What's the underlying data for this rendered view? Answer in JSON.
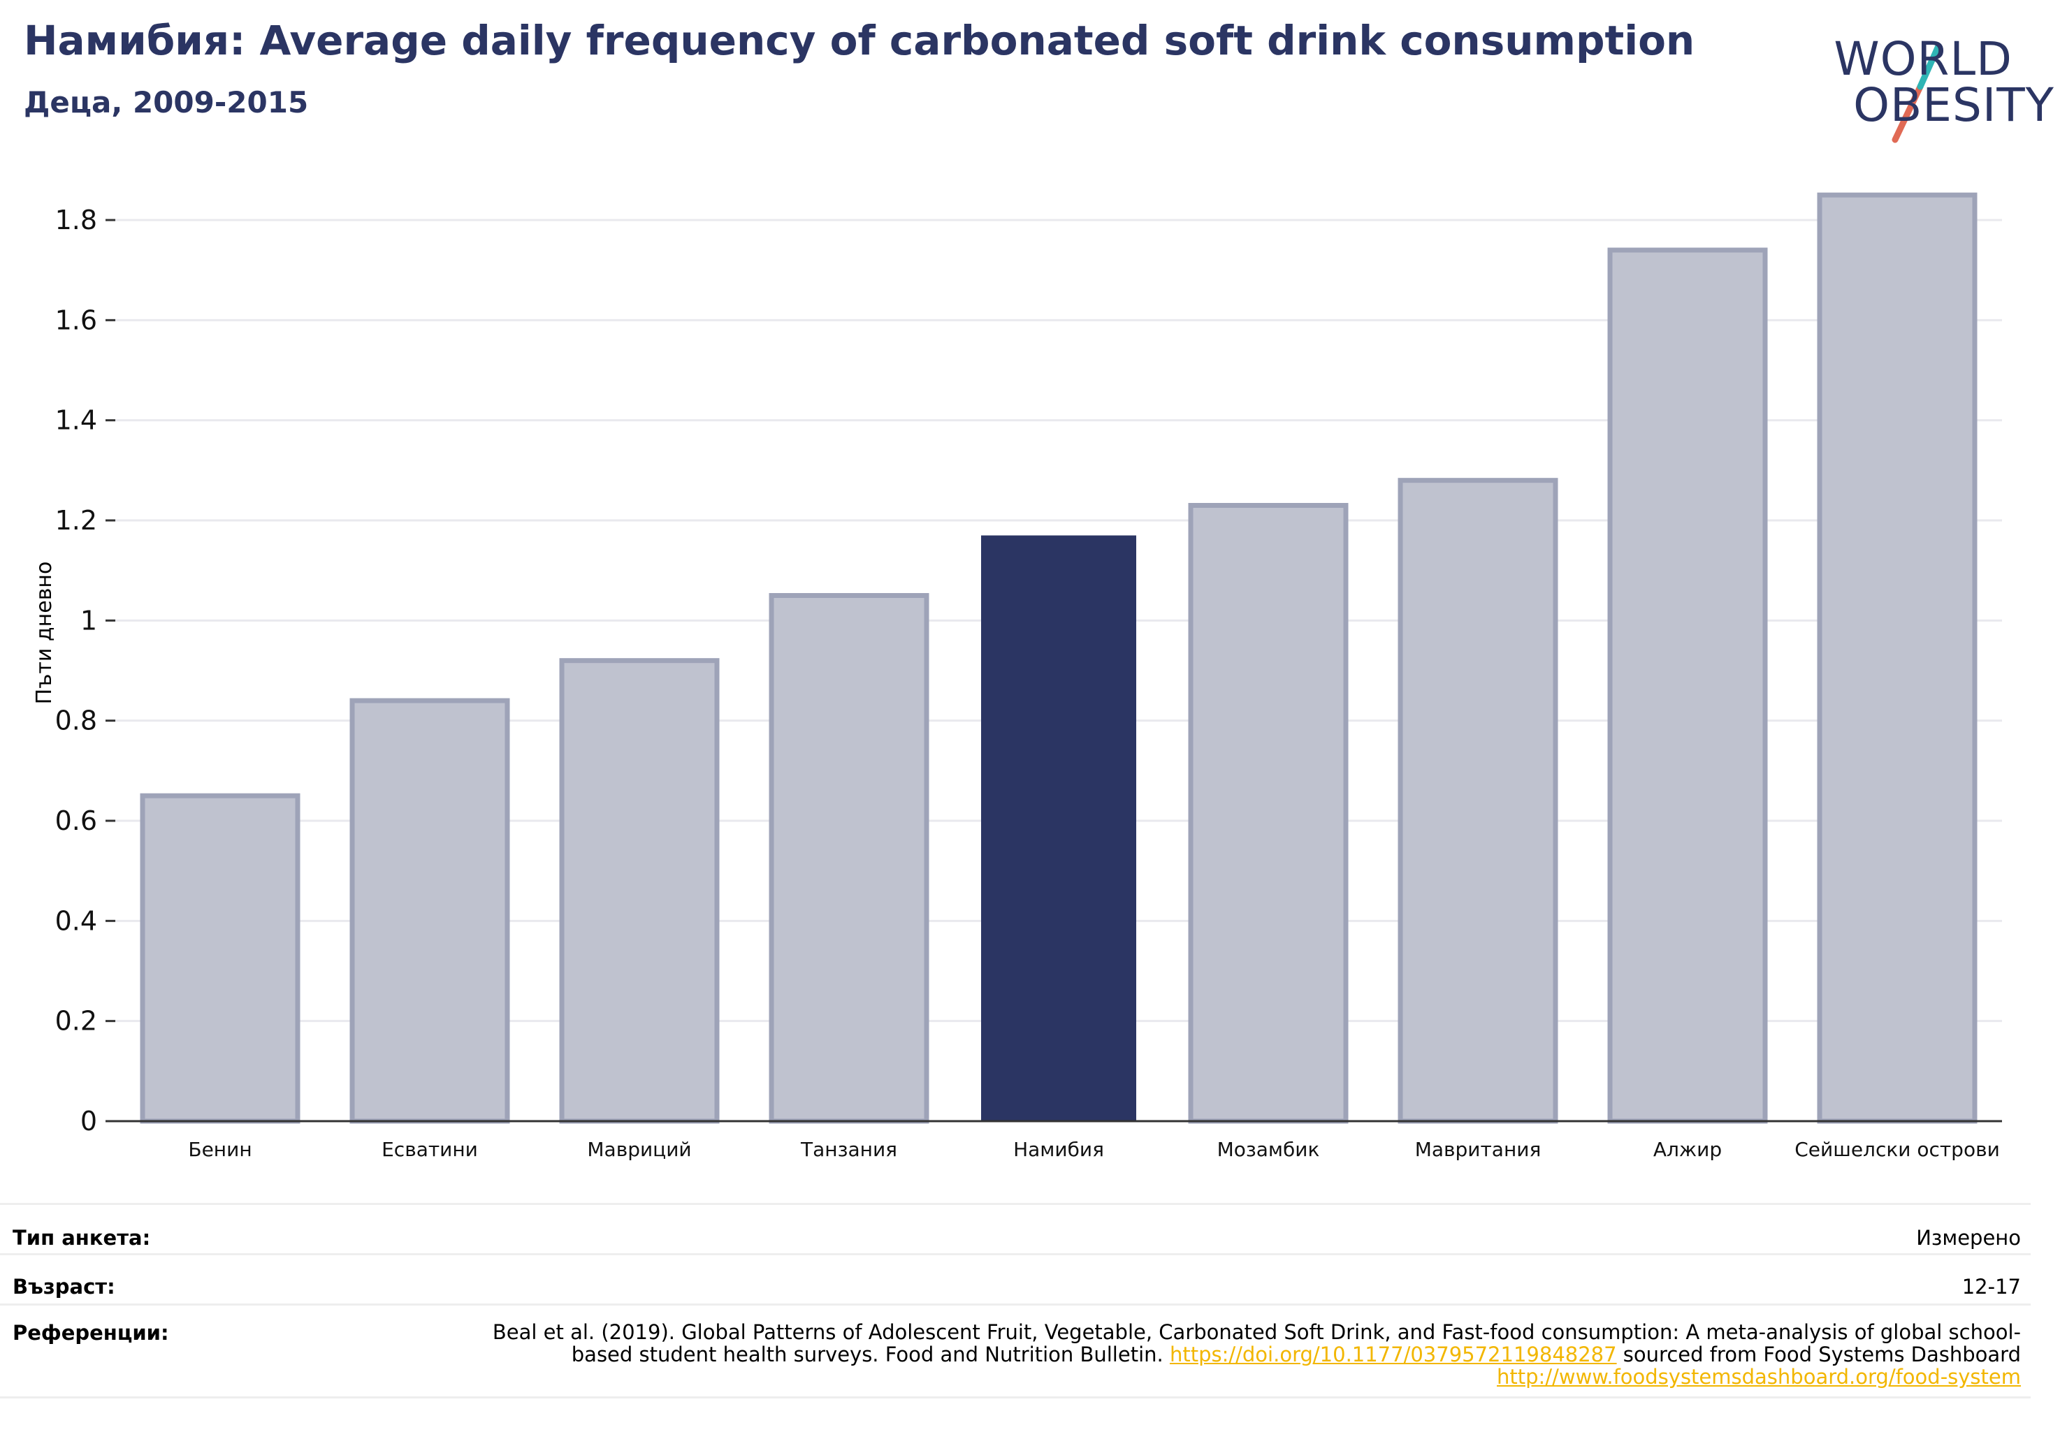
{
  "header": {
    "title": "Намибия: Average daily frequency of carbonated soft drink consumption",
    "subtitle": "Деца, 2009-2015"
  },
  "logo": {
    "line1": "WORLD",
    "line2": "OBESITY",
    "slash_colors": [
      "#2fb5b5",
      "#e06a55"
    ]
  },
  "colors": {
    "highlight_bar": "#2b3563",
    "other_bar": "#bfc2cf",
    "other_bar_border": "#9ea3b8",
    "title": "#2b3563",
    "link": "#f2b600"
  },
  "chart_data": {
    "type": "bar",
    "ylabel": "Пъти дневно",
    "ylim": [
      0,
      1.9
    ],
    "yticks": [
      0,
      0.2,
      0.4,
      0.6,
      0.8,
      1,
      1.2,
      1.4,
      1.6,
      1.8
    ],
    "ytick_labels": [
      "0",
      "0.2",
      "0.4",
      "0.6",
      "0.8",
      "1",
      "1.2",
      "1.4",
      "1.6",
      "1.8"
    ],
    "categories": [
      "Бенин",
      "Есватини",
      "Мавриций",
      "Танзания",
      "Намибия",
      "Мозамбик",
      "Мавритания",
      "Алжир",
      "Сейшелски острови"
    ],
    "values": [
      0.65,
      0.84,
      0.92,
      1.05,
      1.17,
      1.23,
      1.28,
      1.74,
      1.85
    ],
    "highlight": "Намибия",
    "grid": true
  },
  "meta": {
    "survey_label": "Тип анкета:",
    "survey_value": "Измерено",
    "age_label": "Възраст:",
    "age_value": "12-17",
    "ref_label": "Референции:",
    "ref_text_1": "Beal et al. (2019). Global Patterns of Adolescent Fruit, Vegetable, Carbonated Soft Drink, and Fast-food consumption: A meta-analysis of global school-based student health surveys. Food and Nutrition Bulletin.",
    "ref_link_1": "https://doi.org/10.1177/0379572119848287",
    "ref_text_2": "sourced from Food Systems Dashboard",
    "ref_link_2": "http://www.foodsystemsdashboard.org/food-system"
  }
}
